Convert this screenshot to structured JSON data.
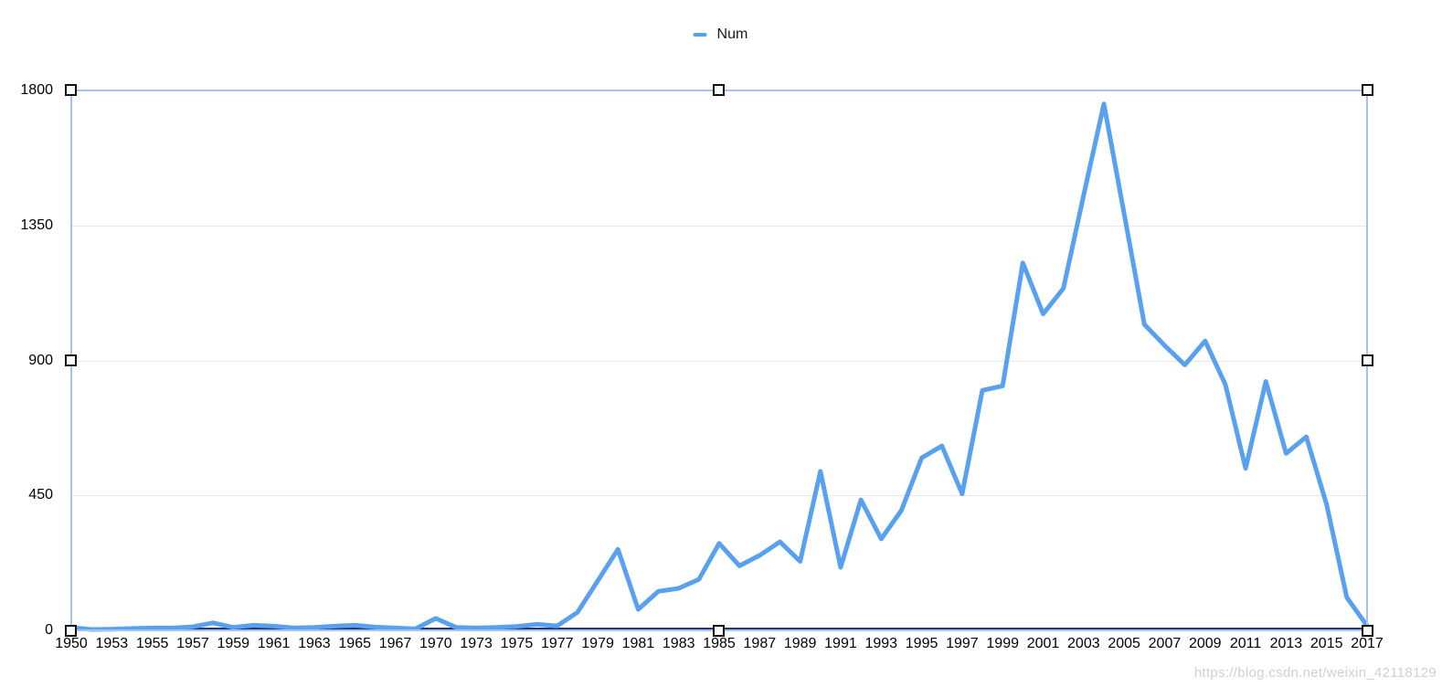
{
  "legend": {
    "items": [
      {
        "label": "Num"
      }
    ]
  },
  "watermark_text": "https://blog.csdn.net/weixin_42118129",
  "chart_data": {
    "type": "line",
    "title": "",
    "legend_position": "top-center",
    "grid": "horizontal",
    "ylim": [
      0,
      1800
    ],
    "y_ticks": [
      0,
      450,
      900,
      1350,
      1800
    ],
    "y_tick_labels": [
      "0",
      "450",
      "900",
      "1350",
      "1800"
    ],
    "x_tick_labels": [
      "1950",
      "1953",
      "1955",
      "1957",
      "1959",
      "1961",
      "1963",
      "1965",
      "1967",
      "1970",
      "1973",
      "1975",
      "1977",
      "1979",
      "1981",
      "1983",
      "1985",
      "1987",
      "1989",
      "1991",
      "1993",
      "1995",
      "1997",
      "1999",
      "2001",
      "2003",
      "2005",
      "2007",
      "2009",
      "2011",
      "2013",
      "2015",
      "2017"
    ],
    "x": [
      1950,
      1951,
      1953,
      1954,
      1955,
      1956,
      1957,
      1958,
      1959,
      1960,
      1961,
      1962,
      1963,
      1964,
      1965,
      1966,
      1967,
      1968,
      1970,
      1971,
      1973,
      1974,
      1975,
      1976,
      1977,
      1978,
      1979,
      1980,
      1981,
      1982,
      1983,
      1984,
      1985,
      1986,
      1987,
      1988,
      1989,
      1990,
      1991,
      1992,
      1993,
      1994,
      1995,
      1996,
      1997,
      1998,
      1999,
      2000,
      2001,
      2002,
      2003,
      2004,
      2005,
      2006,
      2007,
      2008,
      2009,
      2010,
      2011,
      2012,
      2013,
      2014,
      2015,
      2016,
      2017
    ],
    "series": [
      {
        "name": "Num",
        "color": "#58a0f0",
        "values": [
          9,
          3,
          4,
          6,
          8,
          8,
          12,
          25,
          10,
          17,
          14,
          8,
          10,
          14,
          17,
          11,
          8,
          5,
          40,
          10,
          8,
          10,
          13,
          20,
          15,
          60,
          165,
          270,
          70,
          130,
          140,
          170,
          290,
          215,
          250,
          295,
          230,
          530,
          210,
          435,
          305,
          400,
          575,
          615,
          455,
          800,
          815,
          1225,
          1055,
          1140,
          1450,
          1755,
          1390,
          1020,
          950,
          885,
          965,
          820,
          540,
          830,
          590,
          645,
          420,
          110,
          15
        ]
      }
    ],
    "style": {
      "line_color": "#58a0f0",
      "line_width": 5,
      "gridline_color": "#e8e8e8",
      "axis_line_color": "#24386b",
      "selection_border_color": "#a6c3f6",
      "label_color": "#000000",
      "watermark_color": "#ccd1d7",
      "background": "#ffffff"
    }
  }
}
